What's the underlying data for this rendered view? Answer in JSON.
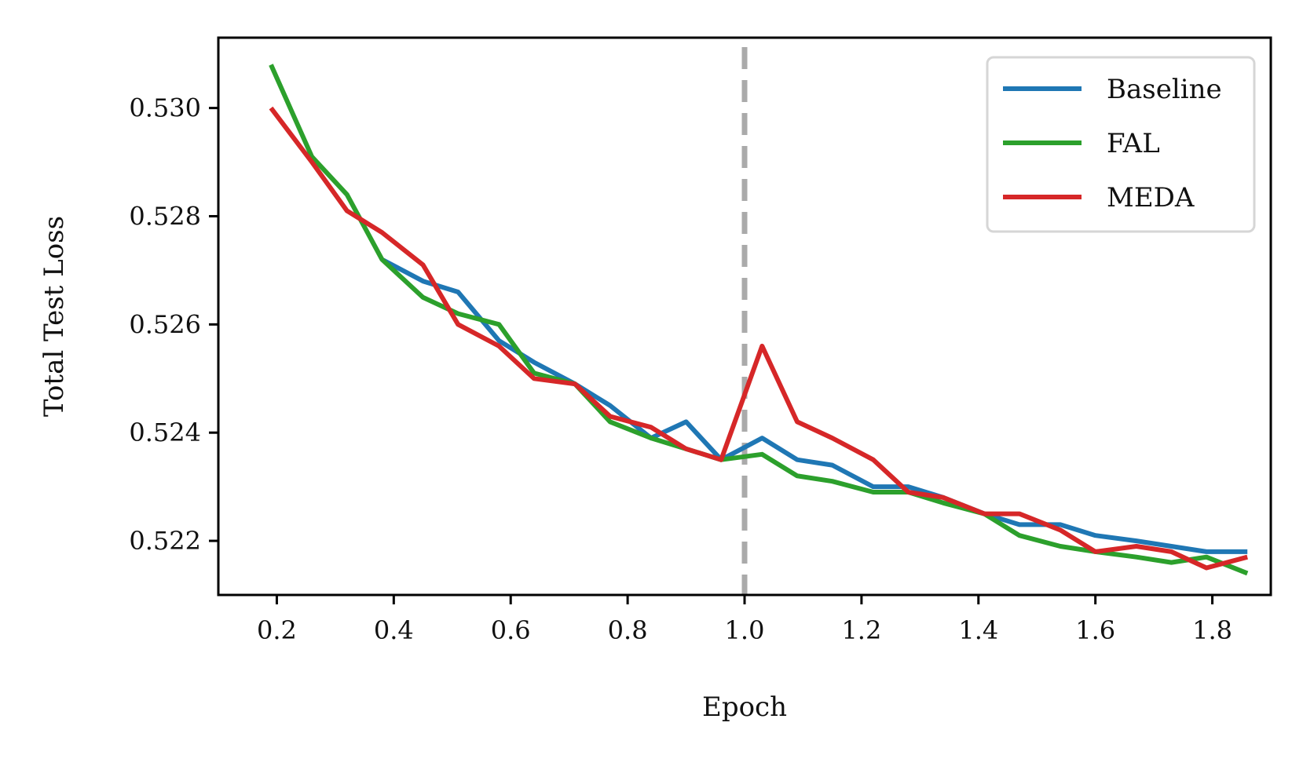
{
  "chart_data": {
    "type": "line",
    "title": "",
    "xlabel": "Epoch",
    "ylabel": "Total Test Loss",
    "xlim": [
      0.1,
      1.9
    ],
    "ylim": [
      0.521,
      0.5313
    ],
    "xticks": [
      0.2,
      0.4,
      0.6,
      0.8,
      1.0,
      1.2,
      1.4,
      1.6,
      1.8
    ],
    "xtick_labels": [
      "0.2",
      "0.4",
      "0.6",
      "0.8",
      "1.0",
      "1.2",
      "1.4",
      "1.6",
      "1.8"
    ],
    "yticks": [
      0.522,
      0.524,
      0.526,
      0.528,
      0.53
    ],
    "ytick_labels": [
      "0.522",
      "0.524",
      "0.526",
      "0.528",
      "0.530"
    ],
    "grid": false,
    "legend_position": "top-right",
    "reference_line": {
      "x": 1.0,
      "style": "dashed",
      "color": "#aaaaaa"
    },
    "series": [
      {
        "name": "Baseline",
        "color": "#1f77b4",
        "x": [
          0.38,
          0.45,
          0.51,
          0.58,
          0.64,
          0.71,
          0.77,
          0.84,
          0.9,
          0.96,
          1.03,
          1.09,
          1.15,
          1.22,
          1.28,
          1.34,
          1.41,
          1.47,
          1.54,
          1.6,
          1.67,
          1.73,
          1.79,
          1.86
        ],
        "y": [
          0.5272,
          0.5268,
          0.5266,
          0.5257,
          0.5253,
          0.5249,
          0.5245,
          0.5239,
          0.5242,
          0.5235,
          0.5239,
          0.5235,
          0.5234,
          0.523,
          0.523,
          0.5228,
          0.5225,
          0.5223,
          0.5223,
          0.5221,
          0.522,
          0.5219,
          0.5218,
          0.5218
        ]
      },
      {
        "name": "FAL",
        "color": "#2ca02c",
        "x": [
          0.19,
          0.26,
          0.32,
          0.38,
          0.45,
          0.51,
          0.58,
          0.64,
          0.71,
          0.77,
          0.84,
          0.9,
          0.96,
          1.03,
          1.09,
          1.15,
          1.22,
          1.28,
          1.34,
          1.41,
          1.47,
          1.54,
          1.6,
          1.67,
          1.73,
          1.79,
          1.86
        ],
        "y": [
          0.5308,
          0.5291,
          0.5284,
          0.5272,
          0.5265,
          0.5262,
          0.526,
          0.5251,
          0.5249,
          0.5242,
          0.5239,
          0.5237,
          0.5235,
          0.5236,
          0.5232,
          0.5231,
          0.5229,
          0.5229,
          0.5227,
          0.5225,
          0.5221,
          0.5219,
          0.5218,
          0.5217,
          0.5216,
          0.5217,
          0.5214
        ]
      },
      {
        "name": "MEDA",
        "color": "#d62728",
        "x": [
          0.19,
          0.26,
          0.32,
          0.38,
          0.45,
          0.51,
          0.58,
          0.64,
          0.71,
          0.77,
          0.84,
          0.9,
          0.96,
          1.03,
          1.09,
          1.15,
          1.22,
          1.28,
          1.34,
          1.41,
          1.47,
          1.54,
          1.6,
          1.67,
          1.73,
          1.79,
          1.86
        ],
        "y": [
          0.53,
          0.529,
          0.5281,
          0.5277,
          0.5271,
          0.526,
          0.5256,
          0.525,
          0.5249,
          0.5243,
          0.5241,
          0.5237,
          0.5235,
          0.5256,
          0.5242,
          0.5239,
          0.5235,
          0.5229,
          0.5228,
          0.5225,
          0.5225,
          0.5222,
          0.5218,
          0.5219,
          0.5218,
          0.5215,
          0.5217
        ]
      }
    ]
  }
}
